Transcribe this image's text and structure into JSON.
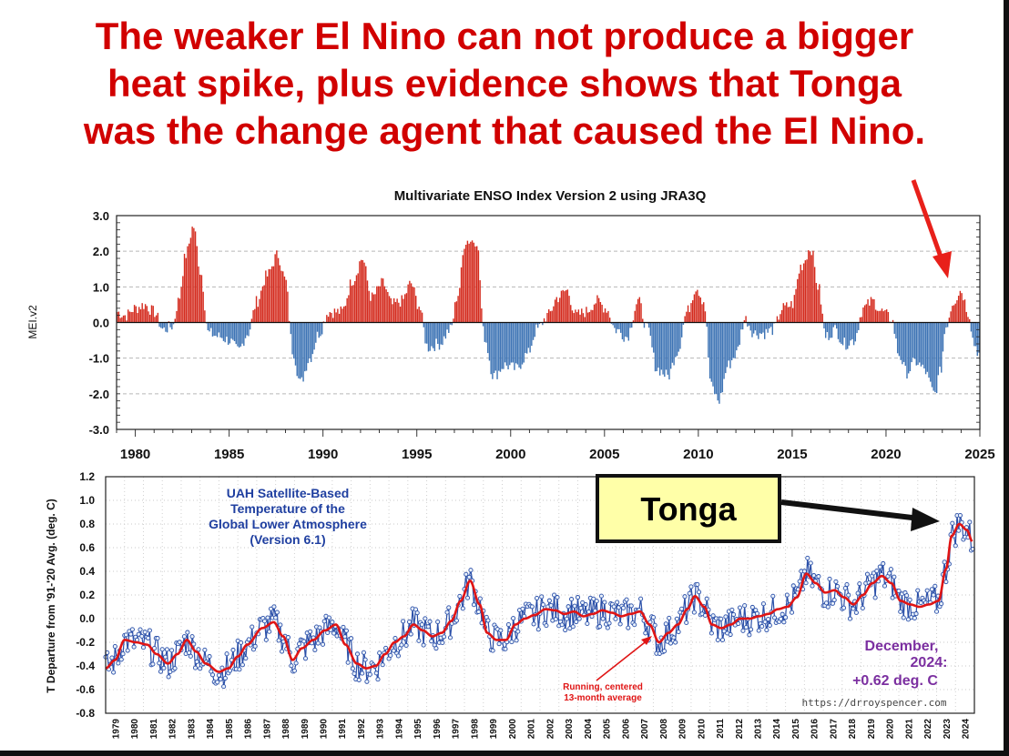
{
  "headline": [
    "The weaker El Nino can not produce a bigger",
    "heat spike, plus evidence shows that Tonga",
    "was the change agent that caused the El Nino."
  ],
  "colors": {
    "headline": "#d10000",
    "positive": "#d42b1e",
    "negative": "#3e74b5",
    "uah_line": "#2a4fa8",
    "uah_avg": "#e01515",
    "uah_title": "#1f3fa0",
    "uah_readout": "#7b2fa0",
    "tonga_box": "#ffffa8",
    "arrow_red": "#e8201a"
  },
  "chart_data": [
    {
      "type": "bar",
      "title": "Multivariate ENSO Index Version 2 using JRA3Q",
      "ylabel": "MEI.v2",
      "xlabel": "",
      "ylim": [
        -3.0,
        3.0
      ],
      "xlim": [
        1979,
        2025
      ],
      "y_ticks": [
        "3.0",
        "2.0",
        "1.0",
        "0.0",
        "-1.0",
        "-2.0",
        "-3.0"
      ],
      "y_tick_values": [
        3,
        2,
        1,
        0,
        -1,
        -2,
        -3
      ],
      "x_ticks": [
        "1980",
        "1985",
        "1990",
        "1995",
        "2000",
        "2005",
        "2010",
        "2015",
        "2020",
        "2025"
      ],
      "x_tick_values": [
        1980,
        1985,
        1990,
        1995,
        2000,
        2005,
        2010,
        2015,
        2020,
        2025
      ],
      "grid": "horizontal dashed",
      "series_anchors": [
        [
          1979.0,
          0.3
        ],
        [
          1979.5,
          0.2
        ],
        [
          1980.0,
          0.4
        ],
        [
          1980.5,
          0.5
        ],
        [
          1981.0,
          0.3
        ],
        [
          1981.5,
          -0.2
        ],
        [
          1982.0,
          -0.1
        ],
        [
          1982.3,
          0.6
        ],
        [
          1982.7,
          1.9
        ],
        [
          1983.1,
          2.7
        ],
        [
          1983.5,
          1.4
        ],
        [
          1983.9,
          -0.3
        ],
        [
          1984.5,
          -0.4
        ],
        [
          1985.0,
          -0.5
        ],
        [
          1985.5,
          -0.8
        ],
        [
          1986.0,
          -0.3
        ],
        [
          1986.5,
          0.6
        ],
        [
          1987.0,
          1.3
        ],
        [
          1987.6,
          1.9
        ],
        [
          1988.0,
          1.2
        ],
        [
          1988.4,
          -0.8
        ],
        [
          1988.8,
          -1.7
        ],
        [
          1989.3,
          -1.0
        ],
        [
          1989.8,
          -0.3
        ],
        [
          1990.3,
          0.3
        ],
        [
          1991.0,
          0.3
        ],
        [
          1991.6,
          1.2
        ],
        [
          1992.1,
          1.8
        ],
        [
          1992.6,
          0.7
        ],
        [
          1993.2,
          1.1
        ],
        [
          1993.7,
          0.5
        ],
        [
          1994.2,
          0.6
        ],
        [
          1994.7,
          1.1
        ],
        [
          1995.1,
          0.5
        ],
        [
          1995.6,
          -0.7
        ],
        [
          1996.2,
          -0.6
        ],
        [
          1996.8,
          -0.2
        ],
        [
          1997.2,
          0.8
        ],
        [
          1997.6,
          2.3
        ],
        [
          1998.2,
          2.3
        ],
        [
          1998.6,
          -0.4
        ],
        [
          1999.1,
          -1.5
        ],
        [
          1999.7,
          -1.2
        ],
        [
          2000.3,
          -1.3
        ],
        [
          2000.9,
          -0.9
        ],
        [
          2001.4,
          -0.2
        ],
        [
          2002.0,
          0.2
        ],
        [
          2002.5,
          0.7
        ],
        [
          2003.0,
          0.9
        ],
        [
          2003.5,
          0.2
        ],
        [
          2004.0,
          0.3
        ],
        [
          2004.6,
          0.6
        ],
        [
          2005.1,
          0.4
        ],
        [
          2005.6,
          -0.2
        ],
        [
          2006.2,
          -0.4
        ],
        [
          2006.8,
          0.6
        ],
        [
          2007.3,
          -0.2
        ],
        [
          2007.8,
          -1.3
        ],
        [
          2008.4,
          -1.5
        ],
        [
          2008.9,
          -0.8
        ],
        [
          2009.4,
          0.3
        ],
        [
          2009.9,
          1.0
        ],
        [
          2010.3,
          0.6
        ],
        [
          2010.7,
          -1.8
        ],
        [
          2011.1,
          -2.2
        ],
        [
          2011.6,
          -1.2
        ],
        [
          2012.0,
          -0.9
        ],
        [
          2012.5,
          0.1
        ],
        [
          2013.0,
          -0.3
        ],
        [
          2013.5,
          -0.3
        ],
        [
          2014.0,
          -0.2
        ],
        [
          2014.5,
          0.4
        ],
        [
          2015.0,
          0.5
        ],
        [
          2015.5,
          1.6
        ],
        [
          2016.0,
          2.1
        ],
        [
          2016.4,
          1.0
        ],
        [
          2016.8,
          -0.4
        ],
        [
          2017.3,
          -0.2
        ],
        [
          2017.8,
          -0.6
        ],
        [
          2018.3,
          -0.5
        ],
        [
          2018.8,
          0.4
        ],
        [
          2019.3,
          0.6
        ],
        [
          2019.8,
          0.3
        ],
        [
          2020.3,
          0.1
        ],
        [
          2020.7,
          -0.9
        ],
        [
          2021.1,
          -1.4
        ],
        [
          2021.6,
          -1.1
        ],
        [
          2022.0,
          -1.3
        ],
        [
          2022.6,
          -2.0
        ],
        [
          2022.9,
          -1.4
        ],
        [
          2023.2,
          -0.1
        ],
        [
          2023.6,
          0.6
        ],
        [
          2024.0,
          0.9
        ],
        [
          2024.4,
          0.3
        ],
        [
          2024.7,
          -0.6
        ],
        [
          2025.0,
          -0.9
        ]
      ]
    },
    {
      "type": "line",
      "title": [
        "UAH Satellite-Based",
        "Temperature of the",
        "Global Lower Atmosphere",
        "(Version 6.1)"
      ],
      "ylabel": "T Departure from '91-'20 Avg. (deg. C)",
      "xlabel": "",
      "ylim": [
        -0.8,
        1.2
      ],
      "xlim": [
        1979,
        2025
      ],
      "y_ticks": [
        "1.2",
        "1.0",
        "0.8",
        "0.6",
        "0.4",
        "0.2",
        "0.0",
        "-0.2",
        "-0.4",
        "-0.6",
        "-0.8"
      ],
      "y_tick_values": [
        1.2,
        1.0,
        0.8,
        0.6,
        0.4,
        0.2,
        0.0,
        -0.2,
        -0.4,
        -0.6,
        -0.8
      ],
      "x_ticks": [
        "1979",
        "1980",
        "1981",
        "1982",
        "1983",
        "1984",
        "1985",
        "1986",
        "1987",
        "1988",
        "1989",
        "1990",
        "1991",
        "1992",
        "1993",
        "1994",
        "1995",
        "1996",
        "1997",
        "1998",
        "1999",
        "2000",
        "2001",
        "2002",
        "2003",
        "2004",
        "2005",
        "2006",
        "2007",
        "2008",
        "2009",
        "2010",
        "2011",
        "2012",
        "2013",
        "2014",
        "2015",
        "2016",
        "2017",
        "2018",
        "2019",
        "2020",
        "2021",
        "2022",
        "2023",
        "2024"
      ],
      "grid": "dotted",
      "series": [
        {
          "name": "Running, centered 13-month average",
          "anchors": [
            [
              1979.0,
              -0.42
            ],
            [
              1979.5,
              -0.35
            ],
            [
              1980.0,
              -0.18
            ],
            [
              1980.6,
              -0.2
            ],
            [
              1981.2,
              -0.22
            ],
            [
              1981.7,
              -0.3
            ],
            [
              1982.3,
              -0.38
            ],
            [
              1982.8,
              -0.3
            ],
            [
              1983.3,
              -0.18
            ],
            [
              1983.8,
              -0.28
            ],
            [
              1984.3,
              -0.38
            ],
            [
              1985.0,
              -0.45
            ],
            [
              1985.5,
              -0.42
            ],
            [
              1986.0,
              -0.32
            ],
            [
              1986.5,
              -0.22
            ],
            [
              1987.3,
              -0.08
            ],
            [
              1987.9,
              -0.03
            ],
            [
              1988.4,
              -0.15
            ],
            [
              1988.9,
              -0.35
            ],
            [
              1989.4,
              -0.25
            ],
            [
              1990.0,
              -0.18
            ],
            [
              1990.6,
              -0.1
            ],
            [
              1991.2,
              -0.05
            ],
            [
              1991.7,
              -0.22
            ],
            [
              1992.3,
              -0.38
            ],
            [
              1992.8,
              -0.42
            ],
            [
              1993.3,
              -0.4
            ],
            [
              1993.8,
              -0.3
            ],
            [
              1994.3,
              -0.2
            ],
            [
              1994.8,
              -0.15
            ],
            [
              1995.3,
              -0.05
            ],
            [
              1995.8,
              -0.1
            ],
            [
              1996.3,
              -0.15
            ],
            [
              1996.8,
              -0.12
            ],
            [
              1997.3,
              -0.02
            ],
            [
              1997.8,
              0.15
            ],
            [
              1998.3,
              0.32
            ],
            [
              1998.8,
              0.12
            ],
            [
              1999.2,
              -0.12
            ],
            [
              1999.7,
              -0.18
            ],
            [
              2000.2,
              -0.18
            ],
            [
              2000.7,
              -0.05
            ],
            [
              2001.2,
              0.0
            ],
            [
              2001.7,
              0.03
            ],
            [
              2002.3,
              0.08
            ],
            [
              2002.8,
              0.07
            ],
            [
              2003.3,
              0.04
            ],
            [
              2003.8,
              0.06
            ],
            [
              2004.3,
              0.02
            ],
            [
              2004.8,
              0.04
            ],
            [
              2005.3,
              0.07
            ],
            [
              2005.8,
              0.05
            ],
            [
              2006.3,
              0.02
            ],
            [
              2006.8,
              0.04
            ],
            [
              2007.3,
              0.06
            ],
            [
              2007.8,
              -0.05
            ],
            [
              2008.3,
              -0.2
            ],
            [
              2008.8,
              -0.12
            ],
            [
              2009.3,
              -0.05
            ],
            [
              2009.8,
              0.08
            ],
            [
              2010.2,
              0.19
            ],
            [
              2010.7,
              0.1
            ],
            [
              2011.1,
              -0.05
            ],
            [
              2011.6,
              -0.08
            ],
            [
              2012.1,
              -0.05
            ],
            [
              2012.6,
              0.0
            ],
            [
              2013.1,
              0.0
            ],
            [
              2013.6,
              0.02
            ],
            [
              2014.1,
              0.04
            ],
            [
              2014.6,
              0.08
            ],
            [
              2015.1,
              0.1
            ],
            [
              2015.6,
              0.18
            ],
            [
              2016.1,
              0.38
            ],
            [
              2016.6,
              0.3
            ],
            [
              2017.1,
              0.22
            ],
            [
              2017.6,
              0.24
            ],
            [
              2018.1,
              0.18
            ],
            [
              2018.6,
              0.12
            ],
            [
              2019.1,
              0.2
            ],
            [
              2019.6,
              0.3
            ],
            [
              2020.1,
              0.36
            ],
            [
              2020.6,
              0.3
            ],
            [
              2021.1,
              0.15
            ],
            [
              2021.6,
              0.12
            ],
            [
              2022.1,
              0.1
            ],
            [
              2022.6,
              0.12
            ],
            [
              2023.1,
              0.15
            ],
            [
              2023.5,
              0.42
            ],
            [
              2023.8,
              0.7
            ],
            [
              2024.2,
              0.8
            ],
            [
              2024.6,
              0.75
            ],
            [
              2024.9,
              0.65
            ]
          ]
        }
      ],
      "annotations": {
        "running_avg_label": [
          "Running, centered",
          "13-month average"
        ],
        "readout": [
          "December,",
          "2024:",
          "+0.62 deg. C"
        ],
        "source": "https://drroyspencer.com"
      }
    }
  ],
  "callout": {
    "label": "Tonga"
  }
}
